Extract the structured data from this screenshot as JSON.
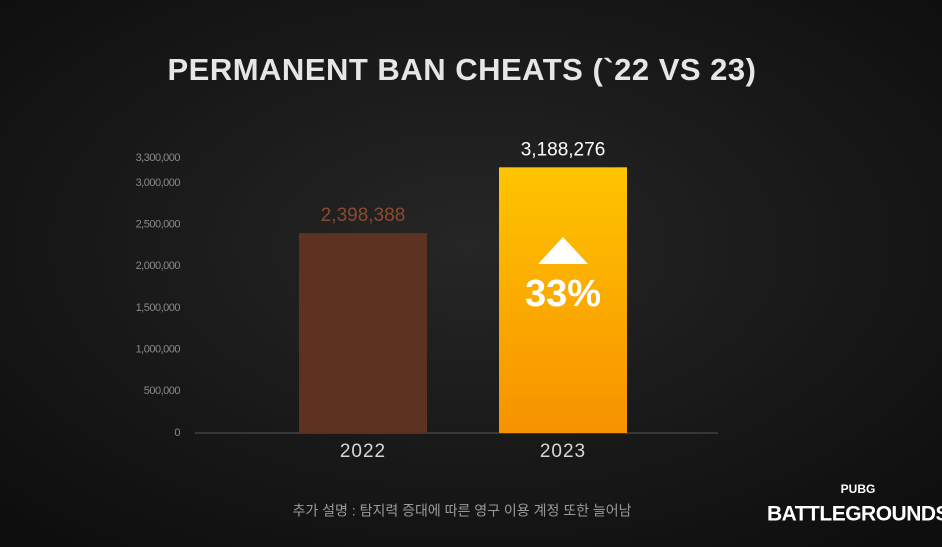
{
  "chart_data": {
    "type": "bar",
    "title": "PERMANENT BAN CHEATS (`22 VS 23)",
    "categories": [
      "2022",
      "2023"
    ],
    "values": [
      2398388,
      3188276
    ],
    "value_labels": [
      "2,398,388",
      "3,188,276"
    ],
    "colors": [
      "#5e3220",
      "#f7a400"
    ],
    "ylim": [
      0,
      3300000
    ],
    "yticks": [
      {
        "value": 0,
        "label": "0"
      },
      {
        "value": 500000,
        "label": "500,000"
      },
      {
        "value": 1000000,
        "label": "1,000,000"
      },
      {
        "value": 1500000,
        "label": "1,500,000"
      },
      {
        "value": 2000000,
        "label": "2,000,000"
      },
      {
        "value": 2500000,
        "label": "2,500,000"
      },
      {
        "value": 3000000,
        "label": "3,000,000"
      },
      {
        "value": 3300000,
        "label": "3,300,000"
      }
    ],
    "grid": false,
    "annotation": "33%",
    "note": "추가 설명 : 탐지력 증대에 따른 영구 이용 계정 또한 늘어남"
  },
  "logo": {
    "top": "PUBG",
    "bottom": "BATTLEGROUNDS"
  }
}
